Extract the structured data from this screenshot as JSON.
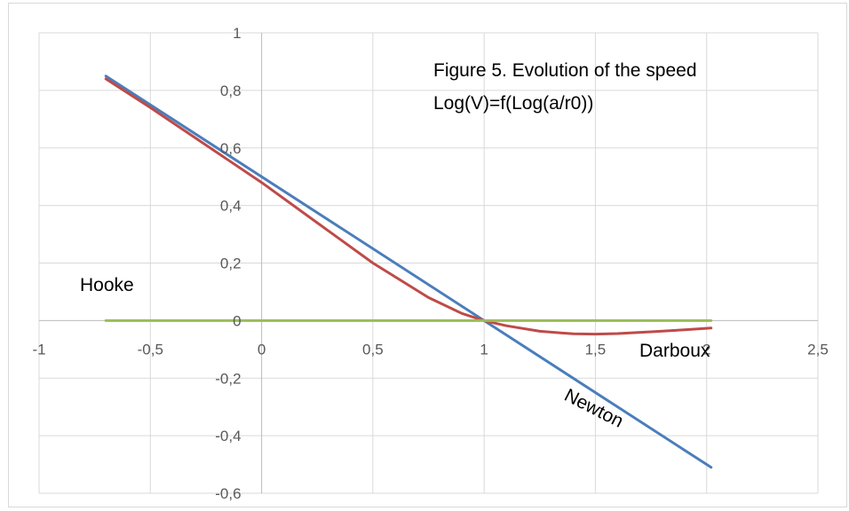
{
  "chart_data": {
    "type": "line",
    "title": "",
    "annotations": [
      "Figure 5. Evolution of the speed",
      "Log(V)=f(Log(a/r0))",
      "Hooke",
      "Darboux",
      "Newton"
    ],
    "xlim": [
      -1,
      2.5
    ],
    "ylim": [
      -0.6,
      1
    ],
    "x_ticks": [
      -1,
      -0.5,
      0,
      0.5,
      1,
      1.5,
      2,
      2.5
    ],
    "x_tick_labels": [
      "-1",
      "-0,5",
      "0",
      "0,5",
      "1",
      "1,5",
      "2",
      "2,5"
    ],
    "y_ticks": [
      -0.6,
      -0.4,
      -0.2,
      0,
      0.2,
      0.4,
      0.6,
      0.8,
      1
    ],
    "y_tick_labels": [
      "-0,6",
      "-0,4",
      "-0,2",
      "0",
      "0,2",
      "0,4",
      "0,6",
      "0,8",
      "1"
    ],
    "grid": true,
    "legend": "none",
    "series": [
      {
        "color": "#4a7ebb",
        "x": [
          -0.7,
          2.02
        ],
        "y": [
          0.85,
          -0.51
        ]
      },
      {
        "color": "#be4b48",
        "x": [
          -0.7,
          -0.5,
          -0.25,
          0,
          0.25,
          0.5,
          0.75,
          0.9,
          1.0,
          1.1,
          1.25,
          1.4,
          1.5,
          1.6,
          1.75,
          1.9,
          2.02
        ],
        "y": [
          0.84,
          0.74,
          0.61,
          0.48,
          0.34,
          0.2,
          0.08,
          0.025,
          0.0,
          -0.018,
          -0.037,
          -0.046,
          -0.047,
          -0.045,
          -0.039,
          -0.032,
          -0.026
        ]
      },
      {
        "color": "#9bbb59",
        "x": [
          -0.7,
          2.02
        ],
        "y": [
          0,
          0
        ]
      }
    ]
  }
}
